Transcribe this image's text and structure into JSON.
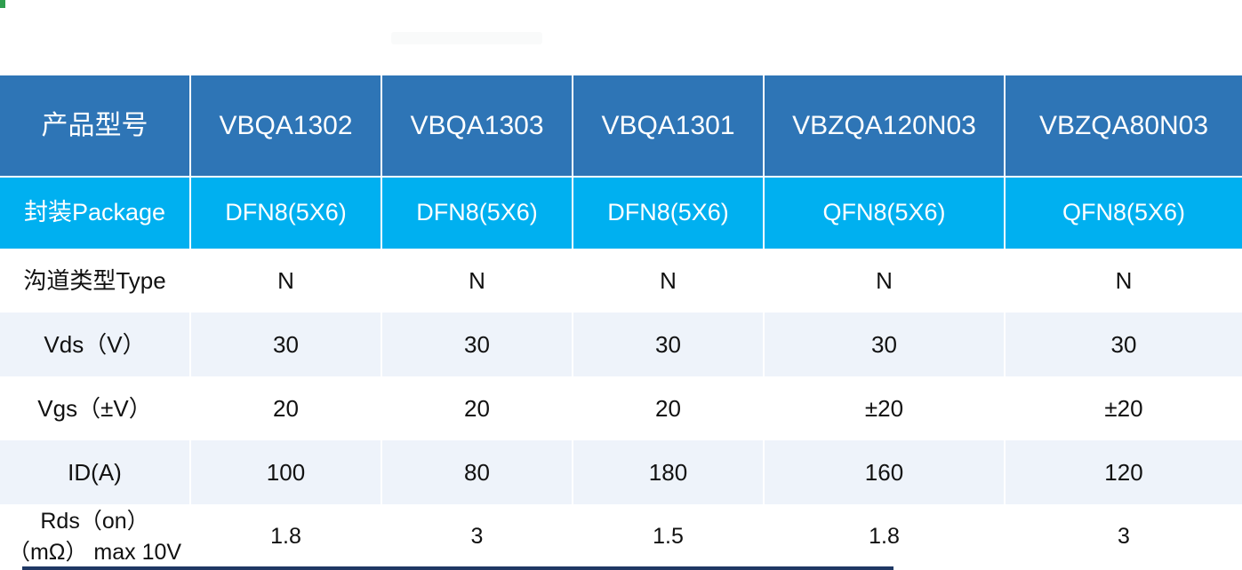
{
  "table": {
    "colors": {
      "header_bg": "#2e75b6",
      "package_row_bg": "#00b0f0",
      "alt_row_bg": "#eef3fa",
      "header_text": "#ffffff",
      "body_text": "#111111",
      "bottom_bar": "#1f3864",
      "corner_mark": "#2f9e4e"
    },
    "header": {
      "label": "产品型号",
      "products": [
        "VBQA1302",
        "VBQA1303",
        "VBQA1301",
        "VBZQA120N03",
        "VBZQA80N03"
      ]
    },
    "rows": [
      {
        "label": "封装Package",
        "values": [
          "DFN8(5X6)",
          "DFN8(5X6)",
          "DFN8(5X6)",
          "QFN8(5X6)",
          "QFN8(5X6)"
        ]
      },
      {
        "label": "沟道类型Type",
        "values": [
          "N",
          "N",
          "N",
          "N",
          "N"
        ]
      },
      {
        "label": "Vds（V）",
        "values": [
          "30",
          "30",
          "30",
          "30",
          "30"
        ]
      },
      {
        "label": "Vgs（±V）",
        "values": [
          "20",
          "20",
          "20",
          "±20",
          "±20"
        ]
      },
      {
        "label": "ID(A)",
        "values": [
          "100",
          "80",
          "180",
          "160",
          "120"
        ]
      },
      {
        "label": "Rds（on）（mΩ） max 10V",
        "values": [
          "1.8",
          "3",
          "1.5",
          "1.8",
          "3"
        ]
      }
    ]
  }
}
